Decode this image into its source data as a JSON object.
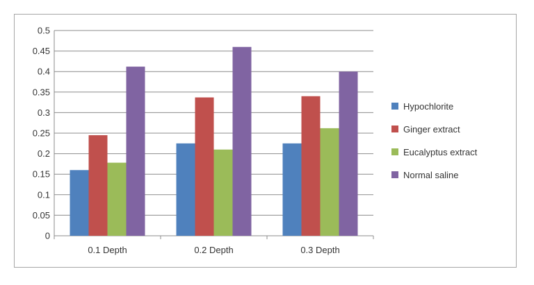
{
  "chart_data": {
    "type": "bar",
    "title": "",
    "xlabel": "",
    "ylabel": "",
    "categories": [
      "0.1 Depth",
      "0.2 Depth",
      "0.3 Depth"
    ],
    "ylim": [
      0,
      0.5
    ],
    "yticks": [
      "0",
      "0.05",
      "0.1",
      "0.15",
      "0.2",
      "0.25",
      "0.3",
      "0.35",
      "0.4",
      "0.45",
      "0.5"
    ],
    "grid": true,
    "legend_position": "right",
    "series": [
      {
        "name": "Hypochlorite",
        "color": "#4f81bd",
        "values": [
          0.16,
          0.225,
          0.225
        ]
      },
      {
        "name": "Ginger extract",
        "color": "#c0504d",
        "values": [
          0.245,
          0.337,
          0.34
        ]
      },
      {
        "name": "Eucalyptus extract",
        "color": "#9bbb59",
        "values": [
          0.178,
          0.21,
          0.262
        ]
      },
      {
        "name": "Normal saline",
        "color": "#8064a2",
        "values": [
          0.412,
          0.46,
          0.4
        ]
      }
    ]
  }
}
